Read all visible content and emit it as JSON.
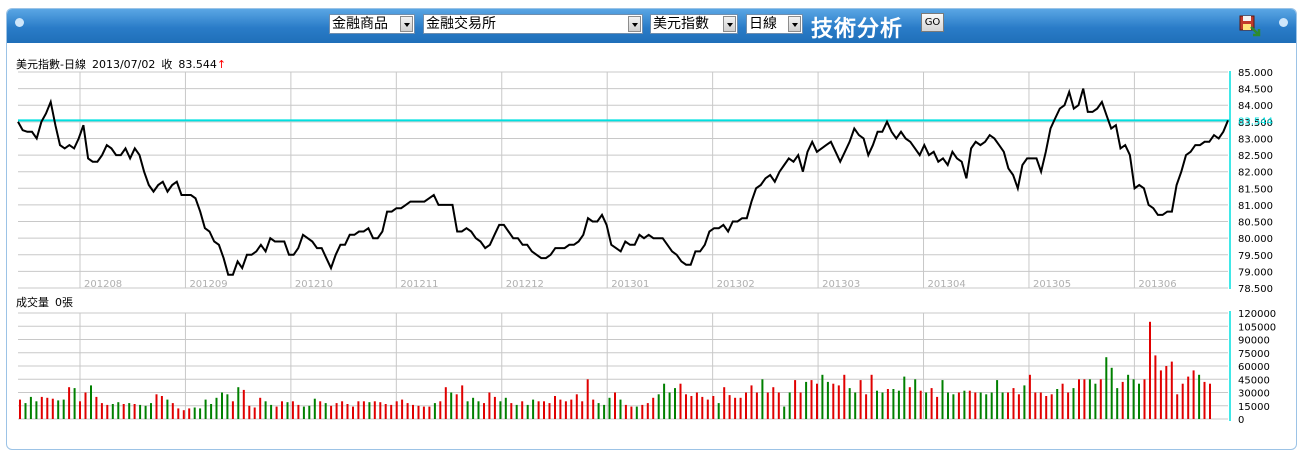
{
  "toolbar": {
    "category_select": "金融商品",
    "exchange_select": "金融交易所",
    "symbol_select": "美元指數",
    "period_select": "日線",
    "title": "技術分析",
    "go_label": "GO"
  },
  "colors": {
    "toolbar_blue": "#2a7cc8",
    "price_line": "#000000",
    "last_price_line": "#00e0e0",
    "volume_up": "#e00000",
    "volume_down": "#008000",
    "grid": "#c8c8c8",
    "up_arrow": "#ff0000"
  },
  "icons": {
    "save": "save-disk-icon"
  },
  "chart_data": [
    {
      "type": "line",
      "title": "美元指數-日線",
      "date_text": "2013/07/02",
      "close_label": "收",
      "close_value": "83.544",
      "close_arrow": "↑",
      "last_value_label": "83.544",
      "last_value": 83.544,
      "x_tick_labels": [
        "201208",
        "201209",
        "201210",
        "201211",
        "201212",
        "201301",
        "201302",
        "201303",
        "201304",
        "201305",
        "201306"
      ],
      "y_tick_labels": [
        "85.000",
        "84.500",
        "84.000",
        "83.500",
        "83.000",
        "82.500",
        "82.000",
        "81.500",
        "81.000",
        "80.500",
        "80.000",
        "79.500",
        "79.000",
        "78.500"
      ],
      "ylim": [
        78.5,
        85.0
      ],
      "grid": true,
      "series": [
        {
          "values": [
            83.5,
            83.25,
            83.2,
            83.2,
            83.0,
            83.5,
            83.75,
            84.1,
            83.4,
            82.8,
            82.7,
            82.8,
            82.7,
            83.0,
            83.4,
            82.4,
            82.3,
            82.3,
            82.5,
            82.8,
            82.7,
            82.5,
            82.5,
            82.7,
            82.4,
            82.7,
            82.5,
            82.0,
            81.6,
            81.4,
            81.6,
            81.7,
            81.4,
            81.6,
            81.7,
            81.3,
            81.3,
            81.3,
            81.2,
            80.8,
            80.3,
            80.2,
            79.9,
            79.8,
            79.4,
            78.9,
            78.9,
            79.3,
            79.1,
            79.5,
            79.5,
            79.6,
            79.8,
            79.6,
            80.0,
            79.9,
            79.9,
            79.9,
            79.5,
            79.5,
            79.7,
            80.1,
            80.0,
            79.9,
            79.7,
            79.7,
            79.4,
            79.1,
            79.5,
            79.8,
            79.8,
            80.1,
            80.1,
            80.2,
            80.2,
            80.3,
            80.0,
            80.0,
            80.2,
            80.8,
            80.8,
            80.9,
            80.9,
            81.0,
            81.1,
            81.1,
            81.1,
            81.1,
            81.2,
            81.3,
            81.0,
            81.0,
            81.0,
            81.0,
            80.2,
            80.2,
            80.3,
            80.2,
            80.0,
            79.9,
            79.7,
            79.8,
            80.1,
            80.4,
            80.4,
            80.2,
            80.0,
            80.0,
            79.8,
            79.8,
            79.6,
            79.5,
            79.4,
            79.4,
            79.5,
            79.7,
            79.7,
            79.7,
            79.8,
            79.8,
            79.9,
            80.1,
            80.6,
            80.5,
            80.5,
            80.7,
            80.4,
            79.8,
            79.7,
            79.6,
            79.9,
            79.8,
            79.8,
            80.1,
            80.0,
            80.1,
            80.0,
            80.0,
            80.0,
            79.8,
            79.6,
            79.5,
            79.3,
            79.2,
            79.2,
            79.6,
            79.6,
            79.8,
            80.2,
            80.3,
            80.3,
            80.4,
            80.2,
            80.5,
            80.5,
            80.6,
            80.6,
            81.1,
            81.5,
            81.6,
            81.8,
            81.9,
            81.7,
            82.0,
            82.2,
            82.4,
            82.3,
            82.5,
            82.0,
            82.6,
            82.9,
            82.6,
            82.7,
            82.8,
            82.9,
            82.6,
            82.3,
            82.6,
            82.9,
            83.3,
            83.1,
            83.0,
            82.5,
            82.8,
            83.2,
            83.2,
            83.5,
            83.2,
            83.0,
            83.2,
            83.0,
            82.9,
            82.7,
            82.5,
            82.8,
            82.5,
            82.6,
            82.3,
            82.4,
            82.2,
            82.6,
            82.4,
            82.3,
            81.8,
            82.7,
            82.9,
            82.8,
            82.9,
            83.1,
            83.0,
            82.8,
            82.6,
            82.1,
            81.9,
            81.5,
            82.2,
            82.4,
            82.4,
            82.4,
            82.0,
            82.6,
            83.3,
            83.6,
            83.9,
            84.0,
            84.4,
            83.9,
            84.0,
            84.5,
            83.8,
            83.8,
            83.9,
            84.1,
            83.7,
            83.3,
            83.4,
            82.7,
            82.8,
            82.5,
            81.5,
            81.6,
            81.5,
            81.0,
            80.9,
            80.7,
            80.7,
            80.8,
            80.8,
            81.6,
            82.0,
            82.5,
            82.6,
            82.8,
            82.8,
            82.9,
            82.9,
            83.1,
            83.0,
            83.2,
            83.544
          ]
        }
      ]
    },
    {
      "type": "bar",
      "title": "成交量",
      "volume_value": "0",
      "volume_unit": "張",
      "y_tick_labels": [
        "120000",
        "105000",
        "90000",
        "75000",
        "60000",
        "45000",
        "30000",
        "15000",
        "0"
      ],
      "ylim": [
        0,
        120000
      ],
      "grid": true,
      "series": [
        {
          "values": [
            22000,
            18000,
            25000,
            20000,
            25000,
            24000,
            23000,
            21000,
            22000,
            36000,
            35000,
            20000,
            30000,
            38000,
            25000,
            18000,
            16000,
            17000,
            19000,
            17000,
            18000,
            17000,
            16000,
            15000,
            18000,
            28000,
            26000,
            22000,
            18000,
            12000,
            10000,
            12000,
            13000,
            12000,
            22000,
            17000,
            24000,
            30000,
            28000,
            20000,
            36000,
            33000,
            15000,
            13000,
            24000,
            20000,
            16000,
            14000,
            20000,
            19000,
            20000,
            16000,
            14000,
            15000,
            23000,
            20000,
            18000,
            15000,
            18000,
            20000,
            17000,
            14000,
            20000,
            20000,
            19000,
            20000,
            19000,
            17000,
            16000,
            20000,
            22000,
            18000,
            16000,
            15000,
            14000,
            14000,
            18000,
            20000,
            36000,
            30000,
            28000,
            38000,
            20000,
            24000,
            20000,
            18000,
            30000,
            25000,
            20000,
            24000,
            18000,
            16000,
            20000,
            16000,
            22000,
            20000,
            20000,
            18000,
            26000,
            22000,
            20000,
            22000,
            28000,
            20000,
            45000,
            22000,
            18000,
            16000,
            24000,
            30000,
            22000,
            16000,
            14000,
            14000,
            16000,
            18000,
            24000,
            28000,
            40000,
            30000,
            35000,
            40000,
            28000,
            26000,
            30000,
            25000,
            22000,
            26000,
            18000,
            36000,
            27000,
            24000,
            24000,
            30000,
            38000,
            30000,
            45000,
            30000,
            36000,
            30000,
            14000,
            30000,
            44000,
            30000,
            42000,
            44000,
            40000,
            50000,
            42000,
            40000,
            38000,
            50000,
            35000,
            30000,
            44000,
            28000,
            50000,
            32000,
            30000,
            34000,
            34000,
            32000,
            48000,
            36000,
            45000,
            32000,
            30000,
            35000,
            25000,
            44000,
            30000,
            28000,
            30000,
            32000,
            32000,
            30000,
            30000,
            28000,
            30000,
            44000,
            30000,
            30000,
            35000,
            28000,
            38000,
            50000,
            30000,
            30000,
            26000,
            28000,
            34000,
            40000,
            30000,
            35000,
            45000,
            45000,
            45000,
            40000,
            45000,
            70000,
            58000,
            35000,
            42000,
            50000,
            45000,
            40000,
            45000,
            110000,
            72000,
            55000,
            60000,
            65000,
            28000,
            40000,
            48000,
            55000,
            50000,
            42000,
            40000
          ]
        }
      ]
    }
  ]
}
